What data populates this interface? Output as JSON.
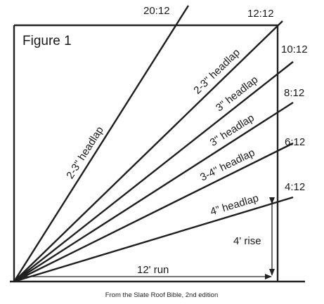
{
  "figure": {
    "title": "Figure 1",
    "credit": "From the Slate Roof Bible, 2nd edition"
  },
  "pitches": [
    {
      "slope": "20:12",
      "rise": 20,
      "headlap": "2-3\" headlap"
    },
    {
      "slope": "12:12",
      "rise": 12,
      "headlap": "2-3\" headlap"
    },
    {
      "slope": "10:12",
      "rise": 10,
      "headlap": "3\" headlap"
    },
    {
      "slope": "8:12",
      "rise": 8,
      "headlap": "3\" headlap"
    },
    {
      "slope": "6:12",
      "rise": 6,
      "headlap": "3-4\" headlap"
    },
    {
      "slope": "4:12",
      "rise": 4,
      "headlap": "4” headlap"
    }
  ],
  "dimensions": {
    "run_label": "12' run",
    "rise_label": "4' rise"
  },
  "colors": {
    "line": "#1e1e1e",
    "text": "#1a1a1a",
    "background": "#ffffff"
  }
}
